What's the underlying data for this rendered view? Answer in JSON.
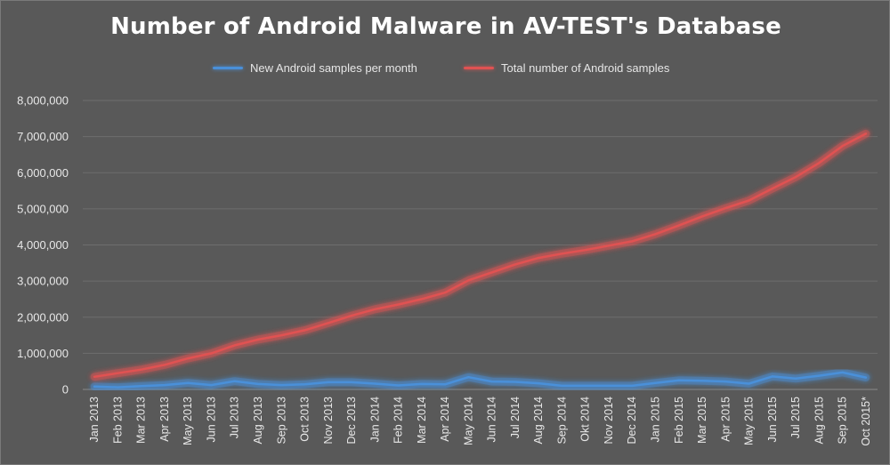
{
  "chart_data": {
    "type": "line",
    "title": "Number of Android Malware in AV-TEST's Database",
    "xlabel": "",
    "ylabel": "",
    "ylim": [
      0,
      8000000
    ],
    "yticks": [
      "0",
      "1,000,000",
      "2,000,000",
      "3,000,000",
      "4,000,000",
      "5,000,000",
      "6,000,000",
      "7,000,000",
      "8,000,000"
    ],
    "grid": true,
    "legend_position": "top",
    "categories": [
      "Jan 2013",
      "Feb 2013",
      "Mar 2013",
      "Apr 2013",
      "May 2013",
      "Jun 2013",
      "Jul 2013",
      "Aug 2013",
      "Sep 2013",
      "Oct 2013",
      "Nov 2013",
      "Dec 2013",
      "Jan 2014",
      "Feb 2014",
      "Mar 2014",
      "Apr 2014",
      "May 2014",
      "Jun 2014",
      "Jul 2014",
      "Aug 2014",
      "Sep 2014",
      "Okt 2014",
      "Nov 2014",
      "Dec 2014",
      "Jan 2015",
      "Feb 2015",
      "Mar 2015",
      "Apr 2015",
      "May 2015",
      "Jun 2015",
      "Jul 2015",
      "Aug 2015",
      "Sep 2015",
      "Oct 2015*"
    ],
    "series": [
      {
        "name": "New Android samples per month",
        "color": "#4a90d9",
        "values": [
          80000,
          60000,
          90000,
          120000,
          180000,
          120000,
          230000,
          150000,
          120000,
          140000,
          200000,
          200000,
          160000,
          110000,
          150000,
          140000,
          340000,
          220000,
          210000,
          170000,
          100000,
          100000,
          100000,
          100000,
          180000,
          250000,
          240000,
          220000,
          160000,
          360000,
          300000,
          380000,
          470000,
          330000
        ]
      },
      {
        "name": "Total number of Android samples",
        "color": "#e05252",
        "values": [
          350000,
          450000,
          550000,
          680000,
          860000,
          1000000,
          1220000,
          1380000,
          1500000,
          1640000,
          1840000,
          2040000,
          2220000,
          2350000,
          2500000,
          2680000,
          3020000,
          3240000,
          3460000,
          3640000,
          3760000,
          3860000,
          3980000,
          4100000,
          4300000,
          4540000,
          4790000,
          5020000,
          5230000,
          5560000,
          5880000,
          6270000,
          6740000,
          7080000
        ]
      }
    ]
  }
}
